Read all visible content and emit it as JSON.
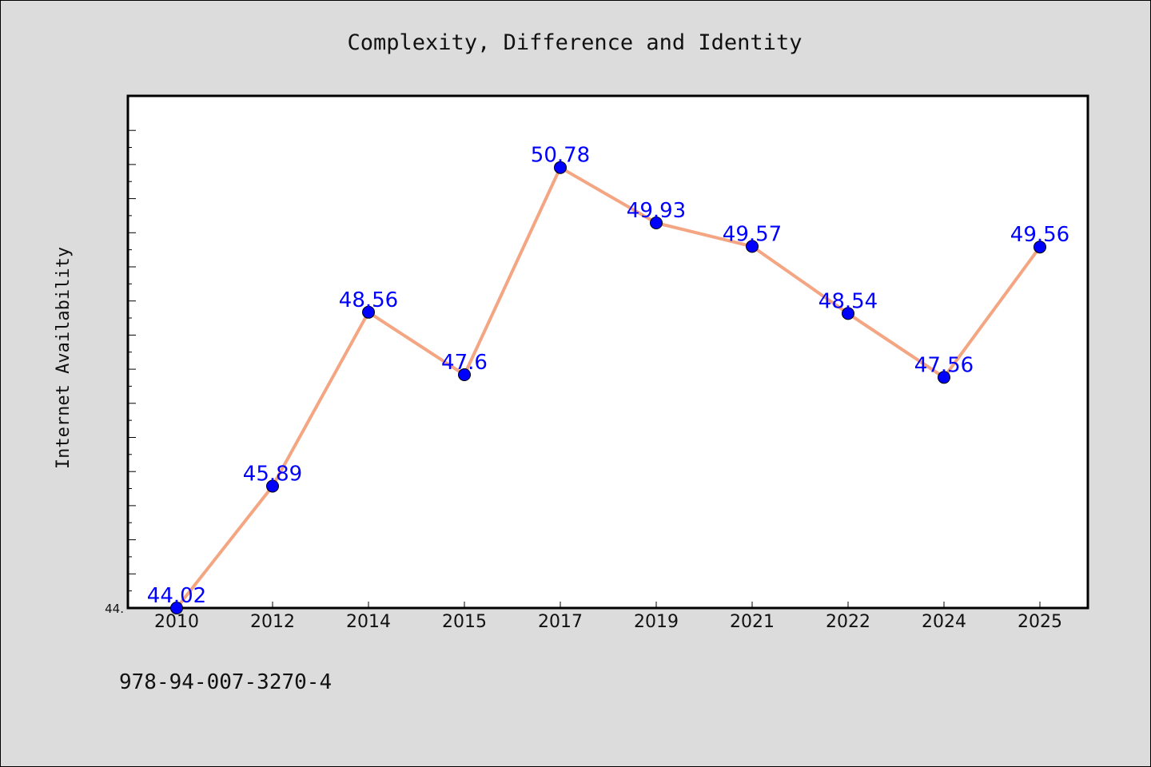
{
  "chart_data": {
    "type": "line",
    "title": "Complexity, Difference and Identity",
    "ylabel": "Internet Availability",
    "xlabel": "",
    "categories": [
      "2010",
      "2012",
      "2014",
      "2015",
      "2017",
      "2019",
      "2021",
      "2022",
      "2024",
      "2025"
    ],
    "series": [
      {
        "values": [
          44.02,
          45.89,
          48.56,
          47.6,
          50.78,
          49.93,
          49.57,
          48.54,
          47.56,
          49.56
        ],
        "labels": [
          "44.02",
          "45.89",
          "48.56",
          "47.6",
          "50.78",
          "49.93",
          "49.57",
          "48.54",
          "47.56",
          "49.56"
        ],
        "line_color": "#f4a582",
        "marker_color": "#0000ff",
        "label_color": "#0000ff"
      }
    ],
    "ylim": [
      44.02,
      51.5
    ],
    "y_tick_labels": [
      "44."
    ],
    "grid": false,
    "legend": "none",
    "plot_background": "#ffffff",
    "figure_background": "#dcdcdc"
  },
  "footer": {
    "isbn": "978-94-007-3270-4"
  }
}
